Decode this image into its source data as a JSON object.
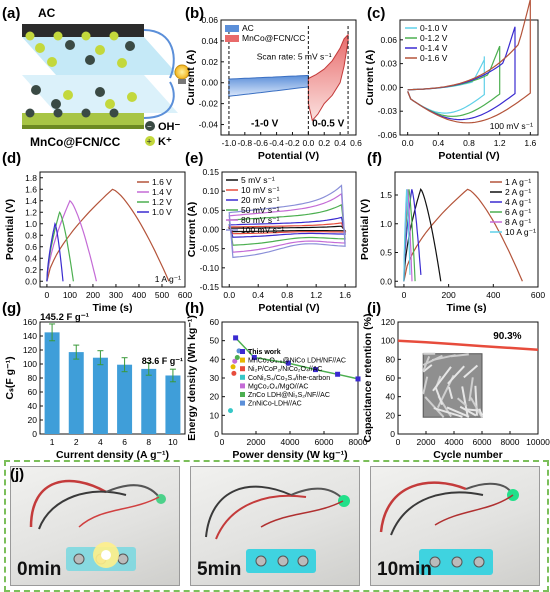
{
  "panels": {
    "a": "(a)",
    "b": "(b)",
    "c": "(c)",
    "d": "(d)",
    "e": "(e)",
    "f": "(f)",
    "g": "(g)",
    "h": "(h)",
    "i": "(i)",
    "j": "(j)"
  },
  "schematic": {
    "ac": "AC",
    "device": "MnCo@FCN/CC",
    "ion1": "OH⁻",
    "ion2": "K⁺"
  },
  "chart_data": [
    {
      "panel": "b",
      "type": "line",
      "xlabel": "Potential (V)",
      "ylabel": "Current (A)",
      "xlim": [
        -1.1,
        0.6
      ],
      "ylim": [
        -0.05,
        0.06
      ],
      "xticks": [
        "-1.0",
        "-0.8",
        "-0.6",
        "-0.4",
        "-0.2",
        "0.0",
        "0.2",
        "0.4",
        "0.6"
      ],
      "yticks": [
        "-0.04",
        "-0.02",
        "0.00",
        "0.02",
        "0.04",
        "0.06"
      ],
      "annotation": "Scan rate: 5 mV s⁻¹",
      "window_neg": "-1-0 V",
      "window_pos": "0-0.5 V",
      "series": [
        {
          "name": "AC",
          "color": "#5b8fd9"
        },
        {
          "name": "MnCo@FCN/CC",
          "color": "#e86a6a"
        }
      ]
    },
    {
      "panel": "c",
      "type": "line",
      "xlabel": "Potential (V)",
      "ylabel": "Current (A)",
      "xlim": [
        -0.1,
        1.7
      ],
      "ylim": [
        -0.06,
        0.085
      ],
      "xticks": [
        "0.0",
        "0.4",
        "0.8",
        "1.2",
        "1.6"
      ],
      "yticks": [
        "-0.06",
        "-0.03",
        "0.00",
        "0.03",
        "0.06"
      ],
      "annotation": "100 mV s⁻¹",
      "series": [
        {
          "name": "0-1.0 V",
          "color": "#5fd0e8",
          "vmax": 1.0
        },
        {
          "name": "0-1.2 V",
          "color": "#4caf50",
          "vmax": 1.2
        },
        {
          "name": "0-1.4 V",
          "color": "#3a2bd0",
          "vmax": 1.4
        },
        {
          "name": "0-1.6 V",
          "color": "#b4543a",
          "vmax": 1.6
        }
      ]
    },
    {
      "panel": "d",
      "type": "line",
      "xlabel": "Time (s)",
      "ylabel": "Potential (V)",
      "xlim": [
        -30,
        600
      ],
      "ylim": [
        -0.1,
        1.9
      ],
      "xticks": [
        "0",
        "100",
        "200",
        "300",
        "400",
        "500",
        "600"
      ],
      "yticks": [
        "0.0",
        "0.2",
        "0.4",
        "0.6",
        "0.8",
        "1.0",
        "1.2",
        "1.4",
        "1.6",
        "1.8"
      ],
      "annotation": "1 A g⁻¹",
      "series": [
        {
          "name": "1.6 V",
          "color": "#b4543a",
          "vmax": 1.6,
          "tc": 285,
          "td": 530
        },
        {
          "name": "1.4 V",
          "color": "#c46bd6",
          "vmax": 1.4,
          "tc": 100,
          "td": 215
        },
        {
          "name": "1.2 V",
          "color": "#4caf50",
          "vmax": 1.2,
          "tc": 55,
          "td": 115
        },
        {
          "name": "1.0 V",
          "color": "#3a2bd0",
          "vmax": 1.0,
          "tc": 35,
          "td": 70
        }
      ]
    },
    {
      "panel": "e",
      "type": "line",
      "xlabel": "Potential (V)",
      "ylabel": "Current (A)",
      "xlim": [
        -0.1,
        1.75
      ],
      "ylim": [
        -0.15,
        0.15
      ],
      "xticks": [
        "0.0",
        "0.4",
        "0.8",
        "1.2",
        "1.6"
      ],
      "yticks": [
        "-0.15",
        "-0.10",
        "-0.05",
        "0.00",
        "0.05",
        "0.10",
        "0.15"
      ],
      "series": [
        {
          "name": "5 mV s⁻¹",
          "color": "#111111",
          "amp": 0.006
        },
        {
          "name": "10 mV s⁻¹",
          "color": "#e74c3c",
          "amp": 0.012
        },
        {
          "name": "20 mV s⁻¹",
          "color": "#3a2bd0",
          "amp": 0.022
        },
        {
          "name": "50 mV s⁻¹",
          "color": "#4caf50",
          "amp": 0.045
        },
        {
          "name": "80 mV s⁻¹",
          "color": "#c46bd6",
          "amp": 0.065
        },
        {
          "name": "100 mV s⁻¹",
          "color": "#8a8fd8",
          "amp": 0.08
        }
      ]
    },
    {
      "panel": "f",
      "type": "line",
      "xlabel": "Time (s)",
      "ylabel": "Potential (V)",
      "xlim": [
        -40,
        600
      ],
      "ylim": [
        -0.1,
        1.9
      ],
      "xticks": [
        "0",
        "200",
        "400",
        "600"
      ],
      "yticks": [
        "0.0",
        "0.5",
        "1.0",
        "1.5"
      ],
      "series": [
        {
          "name": "1 A g⁻¹",
          "color": "#b4543a",
          "tc": 285,
          "td": 530
        },
        {
          "name": "2 A g⁻¹",
          "color": "#111111",
          "tc": 75,
          "td": 165
        },
        {
          "name": "4 A g⁻¹",
          "color": "#3a2bd0",
          "tc": 35,
          "td": 78
        },
        {
          "name": "6 A g⁻¹",
          "color": "#4caf50",
          "tc": 22,
          "td": 50
        },
        {
          "name": "8 A g⁻¹",
          "color": "#c46bd6",
          "tc": 16,
          "td": 36
        },
        {
          "name": "10 A g⁻¹",
          "color": "#5fd0e8",
          "tc": 12,
          "td": 28
        }
      ]
    },
    {
      "panel": "g",
      "type": "bar",
      "xlabel": "Current density (A g⁻¹)",
      "ylabel": "Cₛ(F g⁻¹)",
      "ylim": [
        0,
        160
      ],
      "categories": [
        "1",
        "2",
        "4",
        "6",
        "8",
        "10"
      ],
      "values": [
        145.2,
        117,
        109,
        99,
        93,
        83.6
      ],
      "errors": [
        12,
        10,
        10,
        10,
        9,
        9
      ],
      "yticks": [
        "0",
        "20",
        "40",
        "60",
        "80",
        "100",
        "120",
        "140",
        "160"
      ],
      "label_first": "145.2 F g⁻¹",
      "label_last": "83.6 F g⁻¹",
      "color": "#3f9ed9"
    },
    {
      "panel": "h",
      "type": "scatter",
      "xlabel": "Power density (W kg⁻¹)",
      "ylabel": "Energy density (Wh kg⁻¹)",
      "xlim": [
        0,
        8000
      ],
      "ylim": [
        0,
        60
      ],
      "xticks": [
        "0",
        "2000",
        "4000",
        "6000",
        "8000"
      ],
      "yticks": [
        "0",
        "10",
        "20",
        "30",
        "40",
        "50",
        "60"
      ],
      "this_work": {
        "name": "This work",
        "color": "#3a2bd0",
        "x": [
          800,
          1900,
          3900,
          5500,
          6800,
          8000
        ],
        "y": [
          51.5,
          41,
          38,
          34.5,
          32,
          29.5
        ]
      },
      "refs": [
        {
          "name": "MnCo₂O₄.₅@NiCo LDH/NF//AC",
          "color": "#e6b800",
          "x": [
            650
          ],
          "y": [
            36
          ]
        },
        {
          "name": "Ni₂P/CoP₂/NiCo₂O₄//AC",
          "color": "#e74c3c",
          "x": [
            700
          ],
          "y": [
            32.5
          ]
        },
        {
          "name": "CoNi₂S₄/Co₃S₄/ihe-carbon",
          "color": "#36c7c7",
          "x": [
            500
          ],
          "y": [
            12.5
          ]
        },
        {
          "name": "MgCo₂O₄/MgO//AC",
          "color": "#c46bd6",
          "x": [
            750
          ],
          "y": [
            39
          ]
        },
        {
          "name": "ZnCo LDH@Ni₃S₂/NF//AC",
          "color": "#4caf50",
          "x": [
            900
          ],
          "y": [
            41
          ]
        },
        {
          "name": "ZnNiCo-LDH//AC",
          "color": "#5b8fd9",
          "x": [
            1000
          ],
          "y": [
            44.5
          ]
        }
      ]
    },
    {
      "panel": "i",
      "type": "line",
      "xlabel": "Cycle number",
      "ylabel": "Capacitance retention (%)",
      "xlim": [
        0,
        10000
      ],
      "ylim": [
        0,
        120
      ],
      "xticks": [
        "0",
        "2000",
        "4000",
        "6000",
        "8000",
        "10000"
      ],
      "yticks": [
        "0",
        "20",
        "40",
        "60",
        "80",
        "100",
        "120"
      ],
      "annotation": "90.3%",
      "series": [
        {
          "name": "retention",
          "color": "#e74c3c",
          "x": [
            0,
            2000,
            4000,
            6000,
            8000,
            10000
          ],
          "y": [
            100,
            98.2,
            96.3,
            94.2,
            92.2,
            90.3
          ]
        }
      ]
    }
  ],
  "photos": [
    {
      "label": "0min"
    },
    {
      "label": "5min"
    },
    {
      "label": "10min"
    }
  ]
}
